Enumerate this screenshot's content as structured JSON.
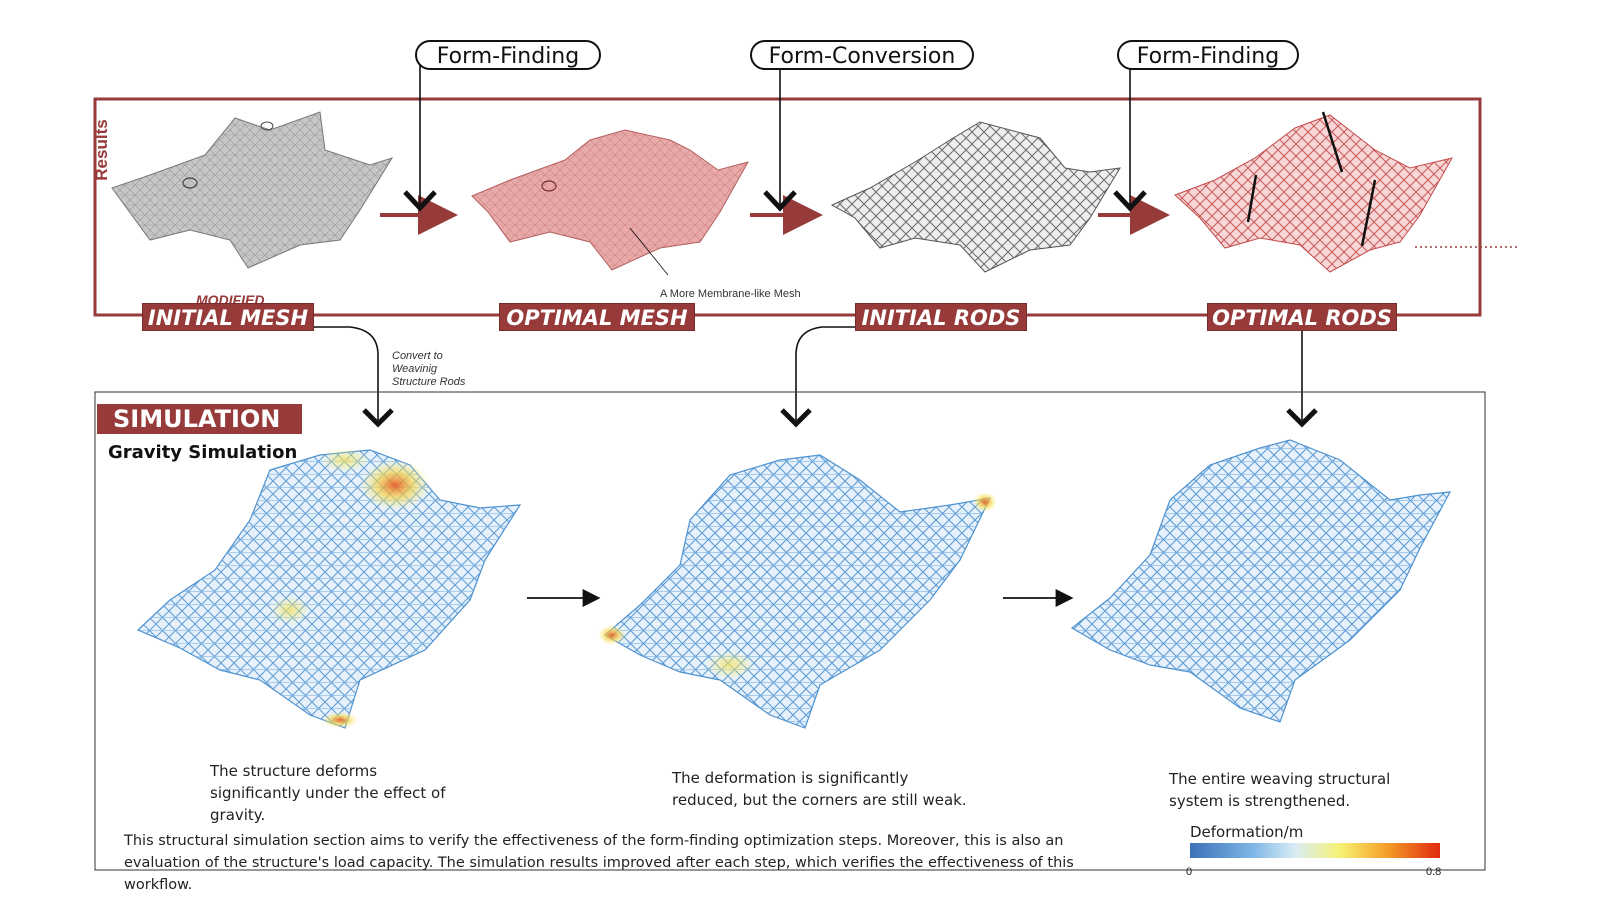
{
  "process_steps": [
    "Form-Finding",
    "Form-Conversion",
    "Form-Finding"
  ],
  "results": {
    "title": "Results",
    "stages": [
      {
        "label": "INITIAL MESH",
        "qualifier": "MODIFIED"
      },
      {
        "label": "OPTIMAL MESH"
      },
      {
        "label": "INITIAL RODS"
      },
      {
        "label": "OPTIMAL RODS"
      }
    ],
    "membrane_note": "A More Membrane-like Mesh",
    "convert_note": "Convert to Weavinig Structure Rods"
  },
  "simulation": {
    "title": "SIMULATION",
    "subtitle": "Gravity Simulation",
    "captions": [
      "The structure deforms significantly under the effect of gravity.",
      "The deformation is significantly reduced, but the corners are still weak.",
      "The entire weaving structural system is strengthened."
    ],
    "description": "This structural simulation section aims to verify the effectiveness of the form-finding optimization steps. Moreover, this is also an evaluation of the structure's load capacity. The simulation results improved after each step, which verifies the effectiveness of this workflow.",
    "legend": {
      "title": "Deformation/m",
      "min": "0",
      "max": "0.8",
      "colors": [
        "#3d71b8",
        "#7db6e6",
        "#d9ecf5",
        "#f6f275",
        "#f5a229",
        "#e02a10"
      ]
    }
  },
  "colors": {
    "accent": "#963a3a",
    "mesh_gray": "#9a9a9a",
    "mesh_red": "#d98a8a",
    "sim_blue": "#5aa0dc"
  }
}
